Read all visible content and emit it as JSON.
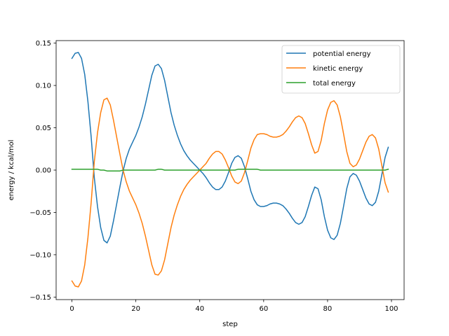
{
  "chart_data": {
    "type": "line",
    "title": "",
    "xlabel": "step",
    "ylabel": "energy / kcal/mol",
    "xlim": [
      -4.95,
      103.95
    ],
    "ylim": [
      -0.153,
      0.153
    ],
    "xticks": [
      0,
      20,
      40,
      60,
      80,
      100
    ],
    "xtick_labels": [
      "0",
      "20",
      "40",
      "60",
      "80",
      "100"
    ],
    "yticks": [
      -0.15,
      -0.1,
      -0.05,
      0.0,
      0.05,
      0.1,
      0.15
    ],
    "ytick_labels": [
      "−0.15",
      "−0.10",
      "−0.05",
      "0.00",
      "0.05",
      "0.10",
      "0.15"
    ],
    "grid": false,
    "legend_position": "top-right",
    "x": [
      0,
      1,
      2,
      3,
      4,
      5,
      6,
      7,
      8,
      9,
      10,
      11,
      12,
      13,
      14,
      15,
      16,
      17,
      18,
      19,
      20,
      21,
      22,
      23,
      24,
      25,
      26,
      27,
      28,
      29,
      30,
      31,
      32,
      33,
      34,
      35,
      36,
      37,
      38,
      39,
      40,
      41,
      42,
      43,
      44,
      45,
      46,
      47,
      48,
      49,
      50,
      51,
      52,
      53,
      54,
      55,
      56,
      57,
      58,
      59,
      60,
      61,
      62,
      63,
      64,
      65,
      66,
      67,
      68,
      69,
      70,
      71,
      72,
      73,
      74,
      75,
      76,
      77,
      78,
      79,
      80,
      81,
      82,
      83,
      84,
      85,
      86,
      87,
      88,
      89,
      90,
      91,
      92,
      93,
      94,
      95,
      96,
      97,
      98,
      99
    ],
    "series": [
      {
        "name": "potential energy",
        "color": "#1f77b4",
        "values": [
          0.132,
          0.138,
          0.139,
          0.132,
          0.113,
          0.081,
          0.04,
          -0.009,
          -0.043,
          -0.068,
          -0.083,
          -0.086,
          -0.078,
          -0.06,
          -0.04,
          -0.02,
          -0.001,
          0.014,
          0.025,
          0.033,
          0.041,
          0.051,
          0.063,
          0.078,
          0.095,
          0.112,
          0.123,
          0.125,
          0.12,
          0.106,
          0.087,
          0.068,
          0.053,
          0.041,
          0.031,
          0.023,
          0.017,
          0.012,
          0.008,
          0.004,
          0.0,
          -0.004,
          -0.009,
          -0.015,
          -0.02,
          -0.023,
          -0.023,
          -0.02,
          -0.013,
          -0.003,
          0.008,
          0.015,
          0.017,
          0.014,
          0.004,
          -0.01,
          -0.025,
          -0.035,
          -0.041,
          -0.043,
          -0.043,
          -0.042,
          -0.04,
          -0.039,
          -0.039,
          -0.04,
          -0.042,
          -0.046,
          -0.051,
          -0.057,
          -0.062,
          -0.064,
          -0.062,
          -0.055,
          -0.043,
          -0.03,
          -0.02,
          -0.022,
          -0.035,
          -0.055,
          -0.071,
          -0.08,
          -0.082,
          -0.077,
          -0.063,
          -0.043,
          -0.022,
          -0.008,
          -0.004,
          -0.006,
          -0.013,
          -0.023,
          -0.033,
          -0.04,
          -0.042,
          -0.038,
          -0.025,
          -0.005,
          0.015,
          0.027
        ]
      },
      {
        "name": "kinetic energy",
        "color": "#ff7f0e",
        "values": [
          -0.131,
          -0.137,
          -0.138,
          -0.131,
          -0.112,
          -0.08,
          -0.039,
          0.01,
          0.044,
          0.068,
          0.083,
          0.085,
          0.077,
          0.059,
          0.039,
          0.019,
          0.0,
          -0.014,
          -0.025,
          -0.033,
          -0.041,
          -0.051,
          -0.063,
          -0.078,
          -0.095,
          -0.112,
          -0.123,
          -0.124,
          -0.119,
          -0.106,
          -0.087,
          -0.068,
          -0.053,
          -0.041,
          -0.031,
          -0.023,
          -0.017,
          -0.012,
          -0.008,
          -0.004,
          0.0,
          0.004,
          0.008,
          0.014,
          0.019,
          0.022,
          0.022,
          0.019,
          0.012,
          0.003,
          -0.007,
          -0.014,
          -0.016,
          -0.013,
          -0.003,
          0.011,
          0.026,
          0.036,
          0.042,
          0.043,
          0.043,
          0.042,
          0.04,
          0.039,
          0.039,
          0.04,
          0.042,
          0.046,
          0.051,
          0.057,
          0.062,
          0.064,
          0.062,
          0.055,
          0.043,
          0.03,
          0.02,
          0.022,
          0.035,
          0.055,
          0.071,
          0.08,
          0.082,
          0.077,
          0.063,
          0.043,
          0.022,
          0.008,
          0.004,
          0.006,
          0.013,
          0.023,
          0.033,
          0.04,
          0.042,
          0.038,
          0.025,
          0.005,
          -0.015,
          -0.026
        ]
      },
      {
        "name": "total energy",
        "color": "#2ca02c",
        "values": [
          0.001,
          0.001,
          0.001,
          0.001,
          0.001,
          0.001,
          0.001,
          0.001,
          0.001,
          0.0,
          0.0,
          -0.001,
          -0.001,
          -0.001,
          -0.001,
          -0.001,
          0.0,
          0.0,
          0.0,
          0.0,
          0.0,
          0.0,
          0.0,
          0.0,
          0.0,
          0.0,
          0.0,
          0.001,
          0.001,
          0.0,
          0.0,
          0.0,
          0.0,
          0.0,
          0.0,
          0.0,
          0.0,
          0.0,
          0.0,
          0.0,
          0.0,
          0.0,
          0.0,
          0.0,
          0.0,
          0.0,
          0.0,
          0.0,
          0.0,
          0.0,
          0.0,
          0.0,
          0.001,
          0.001,
          0.001,
          0.001,
          0.001,
          0.001,
          0.001,
          0.0,
          0.0,
          0.0,
          0.0,
          0.0,
          0.0,
          0.0,
          0.0,
          0.0,
          0.0,
          0.0,
          0.0,
          0.0,
          0.0,
          0.0,
          0.0,
          0.0,
          0.0,
          0.0,
          0.0,
          0.0,
          0.0,
          0.0,
          0.0,
          0.0,
          0.0,
          0.0,
          0.0,
          0.0,
          0.0,
          0.0,
          0.0,
          0.0,
          0.0,
          0.0,
          0.0,
          0.0,
          0.0,
          0.0,
          0.0,
          0.001
        ]
      }
    ]
  }
}
